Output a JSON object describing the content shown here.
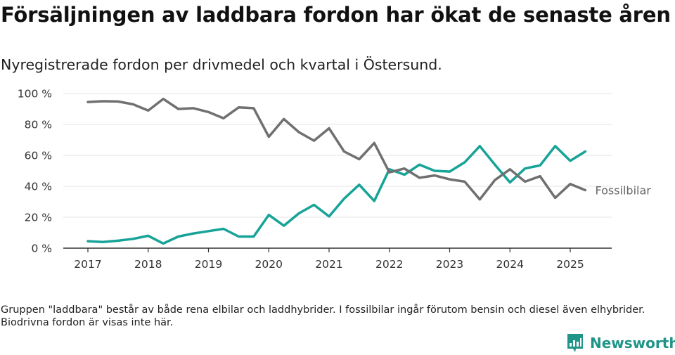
{
  "title": "Försäljningen av laddbara fordon har ökat de senaste åren",
  "subtitle": "Nyregistrerade fordon per drivmedel och kvartal i Östersund.",
  "note": "Gruppen \"laddbara\" består av både rena elbilar och laddhybrider. I fossilbilar ingår förutom bensin och diesel även elhybrider. Biodrivna fordon är visas inte här.",
  "brand": "Newsworthy",
  "chart_data": {
    "type": "line",
    "x_unit": "year-quarter",
    "x": [
      "2017Q1",
      "2017Q2",
      "2017Q3",
      "2017Q4",
      "2018Q1",
      "2018Q2",
      "2018Q3",
      "2018Q4",
      "2019Q1",
      "2019Q2",
      "2019Q3",
      "2019Q4",
      "2020Q1",
      "2020Q2",
      "2020Q3",
      "2020Q4",
      "2021Q1",
      "2021Q2",
      "2021Q3",
      "2021Q4",
      "2022Q1",
      "2022Q2",
      "2022Q3",
      "2022Q4",
      "2023Q1",
      "2023Q2",
      "2023Q3",
      "2023Q4",
      "2024Q1",
      "2024Q2",
      "2024Q3",
      "2024Q4",
      "2025Q1",
      "2025Q2"
    ],
    "xticks": [
      "2017",
      "2018",
      "2019",
      "2020",
      "2021",
      "2022",
      "2023",
      "2024",
      "2025"
    ],
    "yticks": [
      0,
      20,
      40,
      60,
      80,
      100
    ],
    "ytick_labels": [
      "0 %",
      "20 %",
      "40 %",
      "60 %",
      "80 %",
      "100 %"
    ],
    "ylim": [
      0,
      100
    ],
    "grid": true,
    "series": [
      {
        "name": "Fossilbilar",
        "color": "#707070",
        "values": [
          94.5,
          95,
          94.8,
          93,
          89,
          96.5,
          90,
          90.5,
          88,
          84,
          91,
          90.5,
          72,
          83.5,
          75,
          69.5,
          77.5,
          62.5,
          57.5,
          68,
          49,
          51.5,
          45.5,
          47,
          44.5,
          43,
          31.5,
          44,
          51,
          43,
          46.5,
          32.5,
          41.5,
          37.5
        ]
      },
      {
        "color": "#17a397",
        "values": [
          4.5,
          4,
          4.8,
          6,
          8,
          3,
          7.5,
          9.5,
          11,
          12.5,
          7.5,
          7.5,
          21.5,
          14.5,
          22.5,
          28,
          20.5,
          32,
          41,
          30.5,
          51,
          47.5,
          54,
          50,
          49.5,
          55.5,
          66,
          54,
          42.5,
          51.5,
          53.5,
          66,
          56.5,
          62.5
        ]
      }
    ]
  }
}
